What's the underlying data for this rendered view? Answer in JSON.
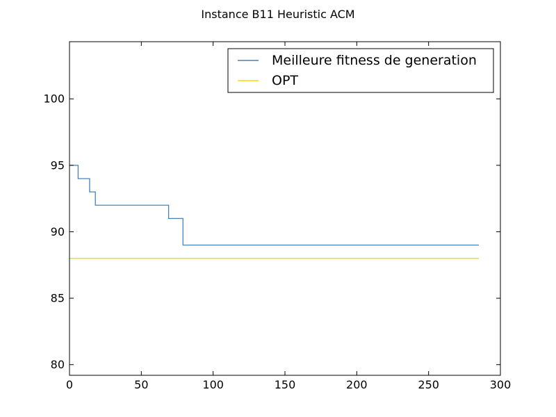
{
  "chart_data": {
    "type": "line",
    "title": "Instance B11 Heuristic ACM",
    "xlabel": "",
    "ylabel": "",
    "xlim": [
      0,
      300
    ],
    "ylim": [
      79.2,
      104.3
    ],
    "xticks": [
      0,
      50,
      100,
      150,
      200,
      250,
      300
    ],
    "yticks": [
      80,
      85,
      90,
      95,
      100
    ],
    "grid": false,
    "legend_position": "top-right",
    "series": [
      {
        "name": "Meilleure fitness de generation",
        "color": "#4682b4",
        "step": true,
        "x": [
          0,
          6,
          14,
          18,
          69,
          79,
          285
        ],
        "y": [
          95,
          94,
          93,
          92,
          91,
          89,
          89
        ]
      },
      {
        "name": "OPT",
        "color": "#ffd700",
        "step": false,
        "x": [
          0,
          285
        ],
        "y": [
          88,
          88
        ]
      }
    ]
  }
}
